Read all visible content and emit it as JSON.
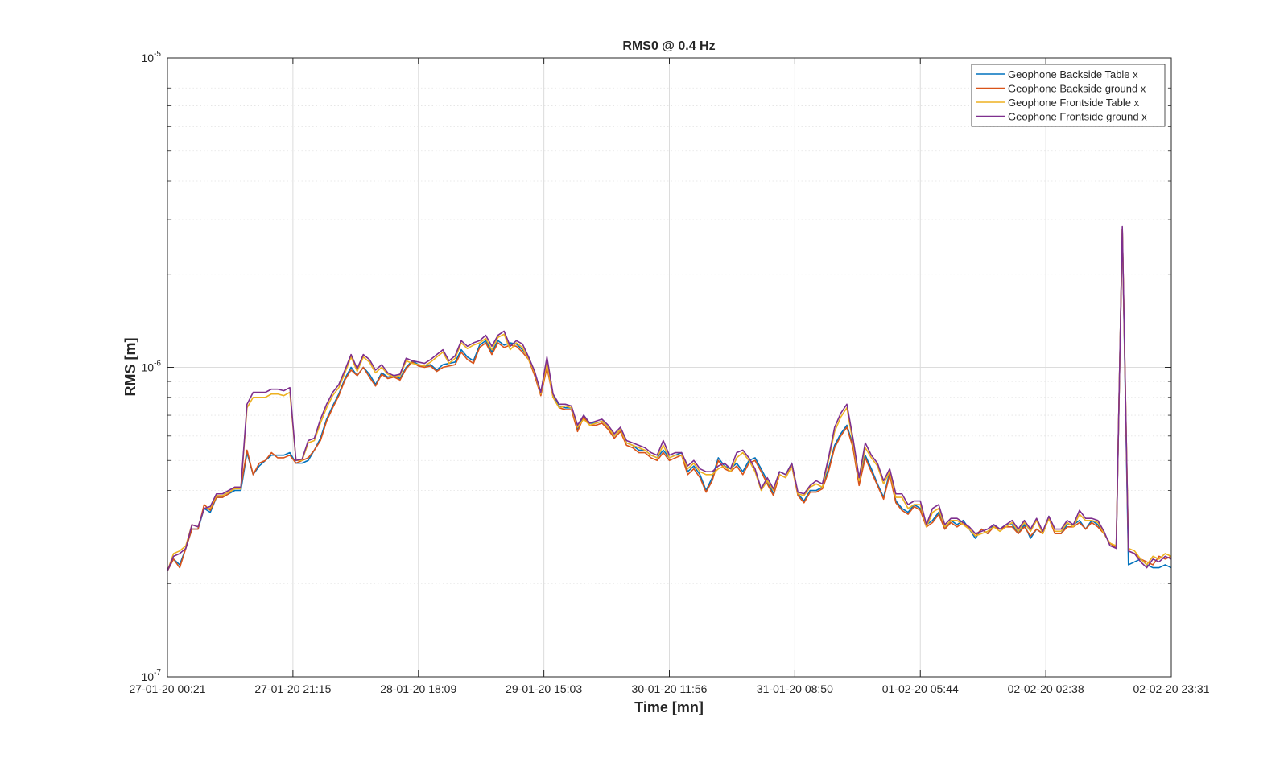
{
  "chart_data": {
    "type": "line",
    "title": "RMS0 @ 0.4 Hz",
    "xlabel": "Time [mn]",
    "ylabel": "RMS [m]",
    "y_scale": "log",
    "ylim": [
      1e-07,
      1e-05
    ],
    "y_ticks": [
      {
        "value": 1e-07,
        "base": "10",
        "exp": "-7"
      },
      {
        "value": 1e-06,
        "base": "10",
        "exp": "-6"
      },
      {
        "value": 1e-05,
        "base": "10",
        "exp": "-5"
      }
    ],
    "x_ticks": [
      "27-01-20 00:21",
      "27-01-20 21:15",
      "28-01-20 18:09",
      "29-01-20 15:03",
      "30-01-20 11:56",
      "31-01-20 08:50",
      "01-02-20 05:44",
      "02-02-20 02:38",
      "02-02-20 23:31"
    ],
    "grid": true,
    "legend_position": "top-right",
    "series": [
      {
        "name": "Geophone Backside Table x",
        "color": "#0072BD",
        "values": [
          2.2e-07,
          2.4e-07,
          2.3e-07,
          2.6e-07,
          3e-07,
          3e-07,
          3.5e-07,
          3.4e-07,
          3.8e-07,
          3.8e-07,
          3.9e-07,
          4e-07,
          4e-07,
          5.3e-07,
          4.5e-07,
          4.8e-07,
          5e-07,
          5.2e-07,
          5.2e-07,
          5.2e-07,
          5.3e-07,
          4.9e-07,
          4.9e-07,
          5e-07,
          5.4e-07,
          5.9e-07,
          6.8e-07,
          7.5e-07,
          8.2e-07,
          9.2e-07,
          1e-06,
          9.4e-07,
          1e-06,
          9.5e-07,
          8.8e-07,
          9.6e-07,
          9.3e-07,
          9.4e-07,
          9.2e-07,
          1e-06,
          1.05e-06,
          1.02e-06,
          1.01e-06,
          1.02e-06,
          9.8e-07,
          1.02e-06,
          1.03e-06,
          1.04e-06,
          1.14e-06,
          1.08e-06,
          1.05e-06,
          1.18e-06,
          1.22e-06,
          1.12e-06,
          1.22e-06,
          1.18e-06,
          1.2e-06,
          1.19e-06,
          1.14e-06,
          1.08e-06,
          9.6e-07,
          8.3e-07,
          1.02e-06,
          8.1e-07,
          7.5e-07,
          7.4e-07,
          7.4e-07,
          6.3e-07,
          7e-07,
          6.6e-07,
          6.6e-07,
          6.7e-07,
          6.4e-07,
          6e-07,
          6.3e-07,
          5.7e-07,
          5.6e-07,
          5.4e-07,
          5.4e-07,
          5.2e-07,
          5.1e-07,
          5.4e-07,
          5.1e-07,
          5.2e-07,
          5.3e-07,
          4.6e-07,
          4.8e-07,
          4.5e-07,
          4e-07,
          4.4e-07,
          5.1e-07,
          4.8e-07,
          4.7e-07,
          4.9e-07,
          4.6e-07,
          5e-07,
          5.1e-07,
          4.7e-07,
          4.3e-07,
          3.9e-07,
          4.6e-07,
          4.5e-07,
          4.9e-07,
          3.9e-07,
          3.7e-07,
          4e-07,
          4e-07,
          4.1e-07,
          4.7e-07,
          5.6e-07,
          6.1e-07,
          6.5e-07,
          5.6e-07,
          4.2e-07,
          5.2e-07,
          4.7e-07,
          4.2e-07,
          3.8e-07,
          4.6e-07,
          3.7e-07,
          3.5e-07,
          3.4e-07,
          3.6e-07,
          3.5e-07,
          3.1e-07,
          3.2e-07,
          3.4e-07,
          3e-07,
          3.2e-07,
          3.1e-07,
          3.2e-07,
          3e-07,
          2.8e-07,
          3e-07,
          2.9e-07,
          3.1e-07,
          3e-07,
          3.1e-07,
          3.1e-07,
          2.9e-07,
          3.1e-07,
          2.8e-07,
          3e-07,
          2.9e-07,
          3.3e-07,
          2.9e-07,
          2.9e-07,
          3.1e-07,
          3.1e-07,
          3.2e-07,
          3e-07,
          3.2e-07,
          3.1e-07,
          2.9e-07,
          2.7e-07,
          2.6e-07,
          2.8e-06,
          2.3e-07,
          2.35e-07,
          2.4e-07,
          2.3e-07,
          2.25e-07,
          2.25e-07,
          2.3e-07,
          2.25e-07
        ]
      },
      {
        "name": "Geophone Backside ground x",
        "color": "#D95319",
        "values": [
          2.2e-07,
          2.4e-07,
          2.25e-07,
          2.6e-07,
          3e-07,
          3e-07,
          3.6e-07,
          3.45e-07,
          3.8e-07,
          3.8e-07,
          3.9e-07,
          4.1e-07,
          4.1e-07,
          5.4e-07,
          4.5e-07,
          4.9e-07,
          5e-07,
          5.3e-07,
          5.1e-07,
          5.1e-07,
          5.2e-07,
          4.9e-07,
          5e-07,
          5.1e-07,
          5.4e-07,
          5.8e-07,
          6.7e-07,
          7.4e-07,
          8.1e-07,
          9.1e-07,
          9.8e-07,
          9.4e-07,
          1e-06,
          9.3e-07,
          8.7e-07,
          9.5e-07,
          9.2e-07,
          9.3e-07,
          9.1e-07,
          9.9e-07,
          1.04e-06,
          1.01e-06,
          1e-06,
          1.01e-06,
          9.7e-07,
          1e-06,
          1.01e-06,
          1.02e-06,
          1.12e-06,
          1.06e-06,
          1.03e-06,
          1.16e-06,
          1.2e-06,
          1.1e-06,
          1.2e-06,
          1.16e-06,
          1.18e-06,
          1.17e-06,
          1.12e-06,
          1.06e-06,
          9.4e-07,
          8.1e-07,
          1e-06,
          8e-07,
          7.4e-07,
          7.3e-07,
          7.3e-07,
          6.2e-07,
          6.9e-07,
          6.5e-07,
          6.5e-07,
          6.6e-07,
          6.3e-07,
          5.9e-07,
          6.2e-07,
          5.6e-07,
          5.5e-07,
          5.3e-07,
          5.3e-07,
          5.1e-07,
          5e-07,
          5.3e-07,
          5e-07,
          5.1e-07,
          5.2e-07,
          4.5e-07,
          4.7e-07,
          4.4e-07,
          3.95e-07,
          4.3e-07,
          5e-07,
          4.7e-07,
          4.6e-07,
          4.8e-07,
          4.5e-07,
          4.9e-07,
          5e-07,
          4.6e-07,
          4.2e-07,
          3.85e-07,
          4.5e-07,
          4.4e-07,
          4.8e-07,
          3.85e-07,
          3.65e-07,
          3.95e-07,
          3.95e-07,
          4.05e-07,
          4.6e-07,
          5.5e-07,
          6e-07,
          6.4e-07,
          5.5e-07,
          4.15e-07,
          5.1e-07,
          4.6e-07,
          4.15e-07,
          3.75e-07,
          4.5e-07,
          3.65e-07,
          3.45e-07,
          3.35e-07,
          3.55e-07,
          3.45e-07,
          3.05e-07,
          3.15e-07,
          3.35e-07,
          3e-07,
          3.15e-07,
          3.05e-07,
          3.15e-07,
          3e-07,
          2.85e-07,
          3e-07,
          2.9e-07,
          3.05e-07,
          3e-07,
          3.05e-07,
          3.05e-07,
          2.9e-07,
          3.05e-07,
          2.85e-07,
          3e-07,
          2.9e-07,
          3.25e-07,
          2.9e-07,
          2.9e-07,
          3.05e-07,
          3.05e-07,
          3.15e-07,
          3e-07,
          3.15e-07,
          3.05e-07,
          2.9e-07,
          2.7e-07,
          2.6e-07,
          2.8e-06,
          2.55e-07,
          2.5e-07,
          2.4e-07,
          2.35e-07,
          2.3e-07,
          2.45e-07,
          2.4e-07,
          2.45e-07
        ]
      },
      {
        "name": "Geophone Frontside Table x",
        "color": "#EDB120",
        "values": [
          2.2e-07,
          2.5e-07,
          2.55e-07,
          2.65e-07,
          3.1e-07,
          3.05e-07,
          3.5e-07,
          3.5e-07,
          3.85e-07,
          3.85e-07,
          3.95e-07,
          4.05e-07,
          4.05e-07,
          7.4e-07,
          8e-07,
          8e-07,
          8e-07,
          8.2e-07,
          8.2e-07,
          8.1e-07,
          8.3e-07,
          5e-07,
          5e-07,
          5.7e-07,
          5.8e-07,
          6.6e-07,
          7.4e-07,
          8.1e-07,
          8.6e-07,
          9.6e-07,
          1.08e-06,
          9.7e-07,
          1.08e-06,
          1.04e-06,
          9.6e-07,
          1e-06,
          9.5e-07,
          9.3e-07,
          9.4e-07,
          1.05e-06,
          1.03e-06,
          1.02e-06,
          1.01e-06,
          1.04e-06,
          1.08e-06,
          1.12e-06,
          1.03e-06,
          1.07e-06,
          1.2e-06,
          1.15e-06,
          1.18e-06,
          1.2e-06,
          1.24e-06,
          1.14e-06,
          1.25e-06,
          1.28e-06,
          1.14e-06,
          1.2e-06,
          1.16e-06,
          1.06e-06,
          9.6e-07,
          8.2e-07,
          1.03e-06,
          8e-07,
          7.4e-07,
          7.5e-07,
          7.4e-07,
          6.4e-07,
          6.8e-07,
          6.5e-07,
          6.6e-07,
          6.7e-07,
          6.4e-07,
          6e-07,
          6.3e-07,
          5.7e-07,
          5.6e-07,
          5.5e-07,
          5.4e-07,
          5.2e-07,
          5.1e-07,
          5.6e-07,
          5.1e-07,
          5.2e-07,
          5.2e-07,
          4.7e-07,
          4.9e-07,
          4.6e-07,
          4.5e-07,
          4.5e-07,
          4.7e-07,
          4.8e-07,
          4.6e-07,
          5.1e-07,
          5.3e-07,
          5e-07,
          4.6e-07,
          4e-07,
          4.3e-07,
          4e-07,
          4.5e-07,
          4.4e-07,
          4.8e-07,
          3.9e-07,
          3.85e-07,
          4.1e-07,
          4.2e-07,
          4.1e-07,
          5e-07,
          6.2e-07,
          6.9e-07,
          7.4e-07,
          5.7e-07,
          4.3e-07,
          5.5e-07,
          5.1e-07,
          4.8e-07,
          4.2e-07,
          4.6e-07,
          3.8e-07,
          3.8e-07,
          3.5e-07,
          3.6e-07,
          3.6e-07,
          3.05e-07,
          3.4e-07,
          3.5e-07,
          3.05e-07,
          3.2e-07,
          3.2e-07,
          3.1e-07,
          3e-07,
          2.85e-07,
          2.9e-07,
          2.95e-07,
          3.05e-07,
          2.95e-07,
          3.05e-07,
          3.15e-07,
          2.95e-07,
          3.15e-07,
          2.95e-07,
          3.2e-07,
          2.9e-07,
          3.25e-07,
          2.95e-07,
          2.95e-07,
          3.15e-07,
          3.05e-07,
          3.35e-07,
          3.2e-07,
          3.2e-07,
          3.15e-07,
          2.9e-07,
          2.7e-07,
          2.65e-07,
          2.8e-06,
          2.6e-07,
          2.55e-07,
          2.4e-07,
          2.3e-07,
          2.45e-07,
          2.4e-07,
          2.5e-07,
          2.45e-07
        ]
      },
      {
        "name": "Geophone Frontside ground x",
        "color": "#7E2F8E",
        "values": [
          2.2e-07,
          2.45e-07,
          2.5e-07,
          2.6e-07,
          3.1e-07,
          3.05e-07,
          3.5e-07,
          3.55e-07,
          3.9e-07,
          3.9e-07,
          4e-07,
          4.1e-07,
          4.1e-07,
          7.6e-07,
          8.3e-07,
          8.3e-07,
          8.3e-07,
          8.5e-07,
          8.5e-07,
          8.4e-07,
          8.6e-07,
          5e-07,
          5.05e-07,
          5.8e-07,
          5.9e-07,
          6.8e-07,
          7.6e-07,
          8.3e-07,
          8.8e-07,
          9.8e-07,
          1.1e-06,
          9.9e-07,
          1.1e-06,
          1.06e-06,
          9.8e-07,
          1.02e-06,
          9.6e-07,
          9.4e-07,
          9.5e-07,
          1.07e-06,
          1.05e-06,
          1.04e-06,
          1.03e-06,
          1.06e-06,
          1.1e-06,
          1.14e-06,
          1.05e-06,
          1.09e-06,
          1.22e-06,
          1.17e-06,
          1.2e-06,
          1.22e-06,
          1.27e-06,
          1.17e-06,
          1.27e-06,
          1.31e-06,
          1.17e-06,
          1.22e-06,
          1.19e-06,
          1.08e-06,
          9.7e-07,
          8.3e-07,
          1.08e-06,
          8.2e-07,
          7.6e-07,
          7.6e-07,
          7.5e-07,
          6.5e-07,
          7e-07,
          6.6e-07,
          6.7e-07,
          6.8e-07,
          6.5e-07,
          6.1e-07,
          6.4e-07,
          5.8e-07,
          5.7e-07,
          5.6e-07,
          5.5e-07,
          5.3e-07,
          5.2e-07,
          5.8e-07,
          5.2e-07,
          5.3e-07,
          5.3e-07,
          4.8e-07,
          5e-07,
          4.7e-07,
          4.6e-07,
          4.6e-07,
          4.8e-07,
          4.9e-07,
          4.7e-07,
          5.3e-07,
          5.4e-07,
          5.1e-07,
          4.7e-07,
          4.05e-07,
          4.4e-07,
          4.05e-07,
          4.6e-07,
          4.5e-07,
          4.9e-07,
          3.95e-07,
          3.9e-07,
          4.15e-07,
          4.3e-07,
          4.2e-07,
          5.1e-07,
          6.4e-07,
          7.1e-07,
          7.6e-07,
          5.9e-07,
          4.4e-07,
          5.7e-07,
          5.2e-07,
          4.9e-07,
          4.3e-07,
          4.7e-07,
          3.9e-07,
          3.9e-07,
          3.6e-07,
          3.7e-07,
          3.7e-07,
          3.1e-07,
          3.5e-07,
          3.6e-07,
          3.1e-07,
          3.25e-07,
          3.25e-07,
          3.15e-07,
          3.05e-07,
          2.9e-07,
          2.95e-07,
          3e-07,
          3.1e-07,
          3e-07,
          3.1e-07,
          3.2e-07,
          3e-07,
          3.2e-07,
          3e-07,
          3.25e-07,
          2.95e-07,
          3.3e-07,
          3e-07,
          3e-07,
          3.2e-07,
          3.1e-07,
          3.45e-07,
          3.25e-07,
          3.25e-07,
          3.2e-07,
          2.95e-07,
          2.65e-07,
          2.6e-07,
          2.85e-06,
          2.55e-07,
          2.5e-07,
          2.35e-07,
          2.25e-07,
          2.4e-07,
          2.35e-07,
          2.45e-07,
          2.4e-07
        ]
      }
    ]
  }
}
